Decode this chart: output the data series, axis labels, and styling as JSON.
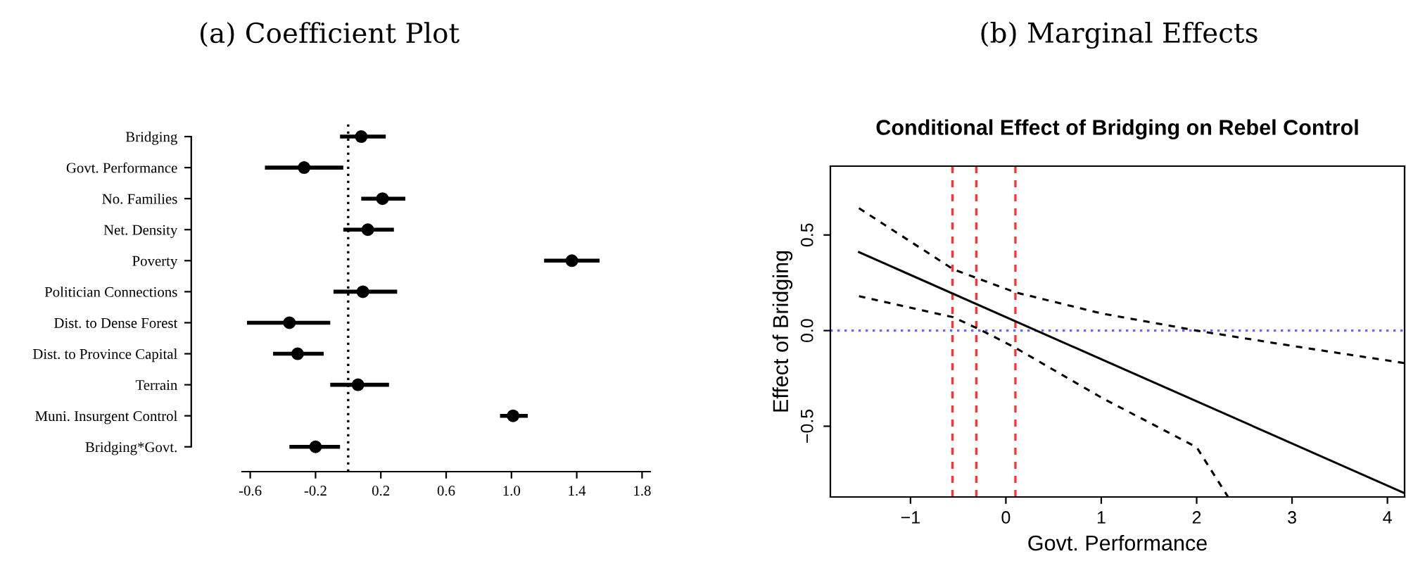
{
  "chart_data": [
    {
      "type": "scatter",
      "title": "(a) Coefficient Plot",
      "orientation": "horizontal",
      "marker": "circle",
      "grid": false,
      "categories": [
        "Bridging",
        "Govt. Performance",
        "No. Families",
        "Net. Density",
        "Poverty",
        "Politician Connections",
        "Dist. to Dense Forest",
        "Dist. to Province Capital",
        "Terrain",
        "Muni. Insurgent Control",
        "Bridging*Govt."
      ],
      "values": [
        0.08,
        -0.27,
        0.21,
        0.12,
        1.37,
        0.09,
        -0.36,
        -0.31,
        0.06,
        1.01,
        -0.2
      ],
      "errors": [
        [
          -0.05,
          0.23
        ],
        [
          -0.51,
          -0.03
        ],
        [
          0.08,
          0.35
        ],
        [
          -0.03,
          0.28
        ],
        [
          1.2,
          1.54
        ],
        [
          -0.09,
          0.3
        ],
        [
          -0.62,
          -0.11
        ],
        [
          -0.46,
          -0.15
        ],
        [
          -0.11,
          0.25
        ],
        [
          0.93,
          1.1
        ],
        [
          -0.36,
          -0.05
        ]
      ],
      "color": "#000000",
      "xlim": [
        -0.65,
        1.85
      ],
      "xticks": [
        -0.6,
        -0.2,
        0.2,
        0.6,
        {
          "value": 1.0,
          "label": "1.0"
        },
        1.4,
        1.8
      ],
      "ref_lines": [
        {
          "axis": "x",
          "value": 0,
          "color": "#000000",
          "line_style": "dotted"
        }
      ]
    },
    {
      "type": "line",
      "title": "(b) Marginal Effects",
      "subtitle": "Conditional Effect of Bridging on Rebel Control",
      "xlabel": "Govt. Performance",
      "ylabel": "Effect of Bridging",
      "grid": false,
      "series": [
        {
          "color": "#000000",
          "line_style": "solid",
          "x": [
            -1.54,
            4.18
          ],
          "values": [
            0.41,
            -0.85
          ]
        },
        {
          "color": "#000000",
          "line_style": "dashed",
          "x": [
            -1.54,
            -0.55,
            0.1,
            1,
            2,
            3,
            4.18
          ],
          "values": [
            0.64,
            0.32,
            0.2,
            0.09,
            0.0,
            -0.08,
            -0.17
          ]
        },
        {
          "color": "#000000",
          "line_style": "dashed",
          "x": [
            -1.54,
            -0.55,
            -0.25,
            0.1,
            1,
            2,
            2.33
          ],
          "values": [
            0.18,
            0.07,
            0.0,
            -0.09,
            -0.35,
            -0.61,
            -0.87
          ]
        }
      ],
      "xlim": [
        -1.84,
        4.18
      ],
      "ylim": [
        -0.87,
        0.86
      ],
      "xticks": [
        {
          "value": -1,
          "label": "−1"
        },
        0,
        1,
        2,
        3,
        4
      ],
      "yticks": [
        {
          "value": -0.5,
          "label": "−0.5"
        },
        {
          "value": 0,
          "label": "0.0"
        },
        0.5
      ],
      "ref_lines": [
        {
          "axis": "y",
          "value": 0,
          "color": "#6666ff",
          "line_style": "dotted"
        },
        {
          "axis": "x",
          "value": -0.56,
          "color": "#ff3333",
          "line_style": "dashed"
        },
        {
          "axis": "x",
          "value": -0.31,
          "color": "#ff3333",
          "line_style": "dashed"
        },
        {
          "axis": "x",
          "value": 0.1,
          "color": "#ff3333",
          "line_style": "dashed"
        }
      ]
    }
  ]
}
